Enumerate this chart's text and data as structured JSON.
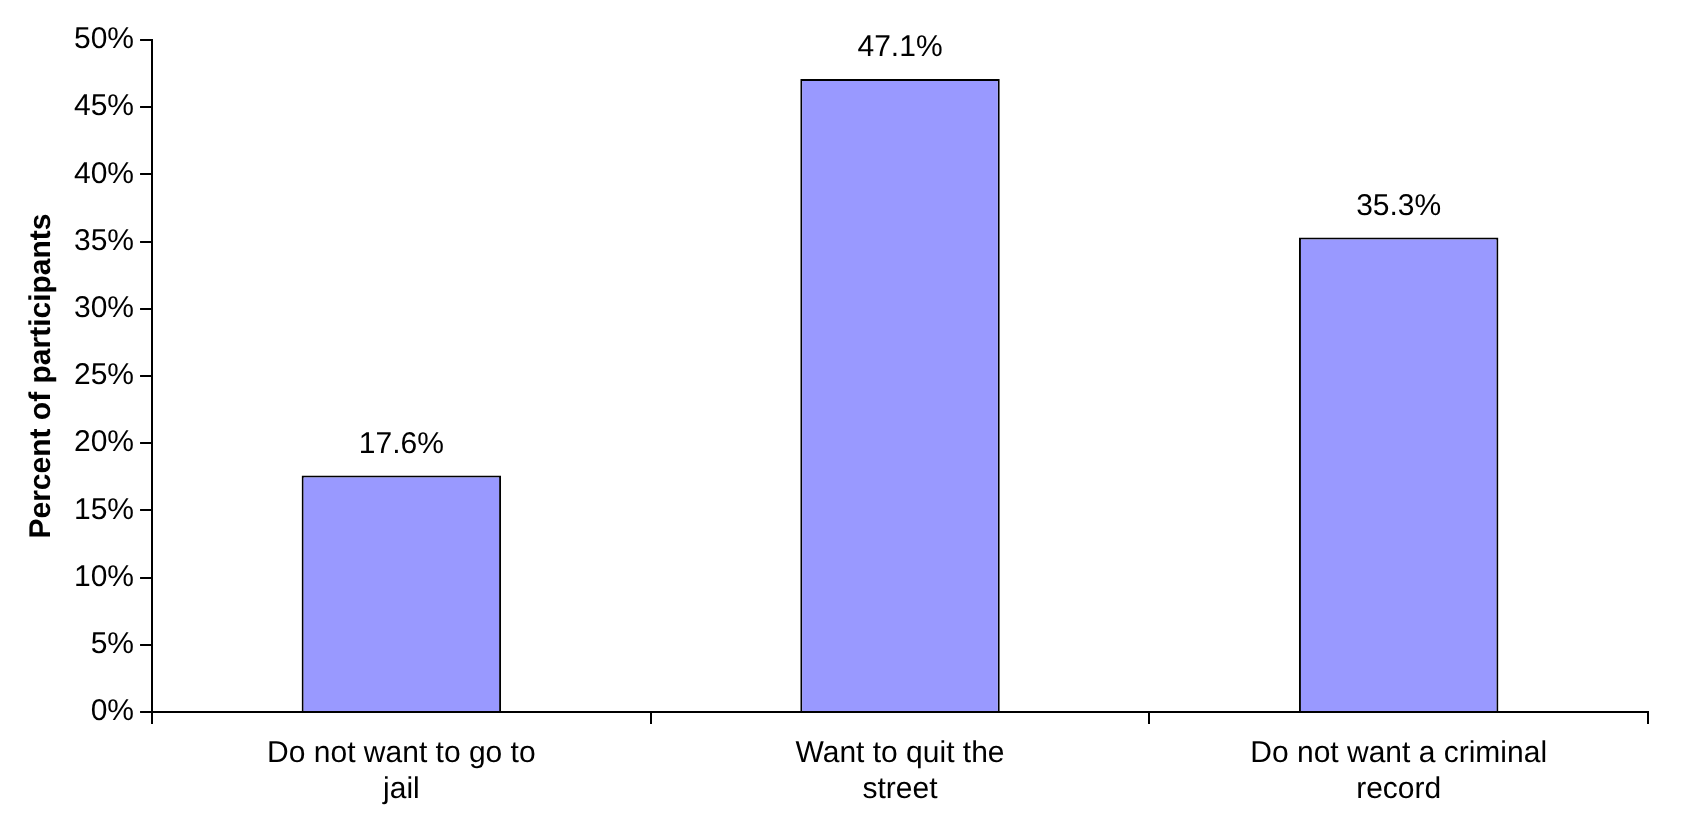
{
  "chart_data": {
    "type": "bar",
    "ylabel": "Percent of participants",
    "categories": [
      "Do not want to go to jail",
      "Want to quit the street",
      "Do not want a criminal record"
    ],
    "values": [
      17.6,
      47.1,
      35.3
    ],
    "color": "#9999ff",
    "value_labels": [
      "17.6%",
      "47.1%",
      "35.3%"
    ],
    "ylim": [
      0,
      50
    ],
    "yticks": [
      {
        "value": 0,
        "label": "0%"
      },
      {
        "value": 5,
        "label": "5%"
      },
      {
        "value": 10,
        "label": "10%"
      },
      {
        "value": 15,
        "label": "15%"
      },
      {
        "value": 20,
        "label": "20%"
      },
      {
        "value": 25,
        "label": "25%"
      },
      {
        "value": 30,
        "label": "30%"
      },
      {
        "value": 35,
        "label": "35%"
      },
      {
        "value": 40,
        "label": "40%"
      },
      {
        "value": 45,
        "label": "45%"
      },
      {
        "value": 50,
        "label": "50%"
      }
    ],
    "grid": false,
    "legend": false
  }
}
